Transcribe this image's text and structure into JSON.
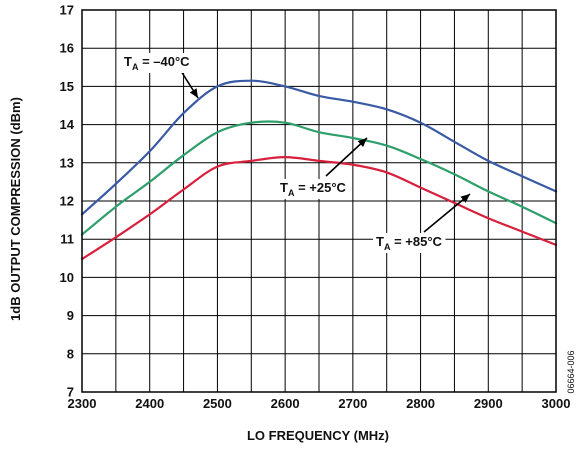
{
  "chart_data": {
    "type": "line",
    "xlabel": "LO FREQUENCY (MHz)",
    "ylabel": "1dB OUTPUT COMPRESSION (dBm)",
    "xlim": [
      2300,
      3000
    ],
    "ylim": [
      7,
      17
    ],
    "x_ticks": [
      2300,
      2400,
      2500,
      2600,
      2700,
      2800,
      2900,
      3000
    ],
    "y_ticks": [
      7,
      8,
      9,
      10,
      11,
      12,
      13,
      14,
      15,
      16,
      17
    ],
    "grid": true,
    "x": [
      2300,
      2350,
      2400,
      2450,
      2500,
      2550,
      2600,
      2650,
      2700,
      2750,
      2800,
      2850,
      2900,
      2950,
      3000
    ],
    "series": [
      {
        "name": "TA = –40°C",
        "color": "#3a5aa5",
        "values": [
          11.65,
          12.45,
          13.3,
          14.3,
          15.0,
          15.15,
          15.0,
          14.75,
          14.6,
          14.4,
          14.05,
          13.55,
          13.05,
          12.65,
          12.25
        ]
      },
      {
        "name": "TA = +25°C",
        "color": "#2e9e6a",
        "values": [
          11.12,
          11.85,
          12.5,
          13.2,
          13.8,
          14.05,
          14.05,
          13.8,
          13.65,
          13.45,
          13.1,
          12.7,
          12.25,
          11.85,
          11.42
        ]
      },
      {
        "name": "TA = +85°C",
        "color": "#d81f3c",
        "values": [
          10.48,
          11.05,
          11.65,
          12.3,
          12.9,
          13.05,
          13.15,
          13.05,
          12.95,
          12.75,
          12.35,
          11.95,
          11.55,
          11.2,
          10.85
        ]
      }
    ],
    "annotations": [
      {
        "subscript": "A",
        "suffix": " = –40°C",
        "series": 0,
        "x": 2550,
        "y": 15.15
      },
      {
        "subscript": "A",
        "suffix": " = +25°C",
        "series": 1,
        "x": 2730,
        "y": 13.6
      },
      {
        "subscript": "A",
        "suffix": " = +85°C",
        "series": 2,
        "x": 2870,
        "y": 12.0
      }
    ],
    "figure_id": "06664-006"
  }
}
